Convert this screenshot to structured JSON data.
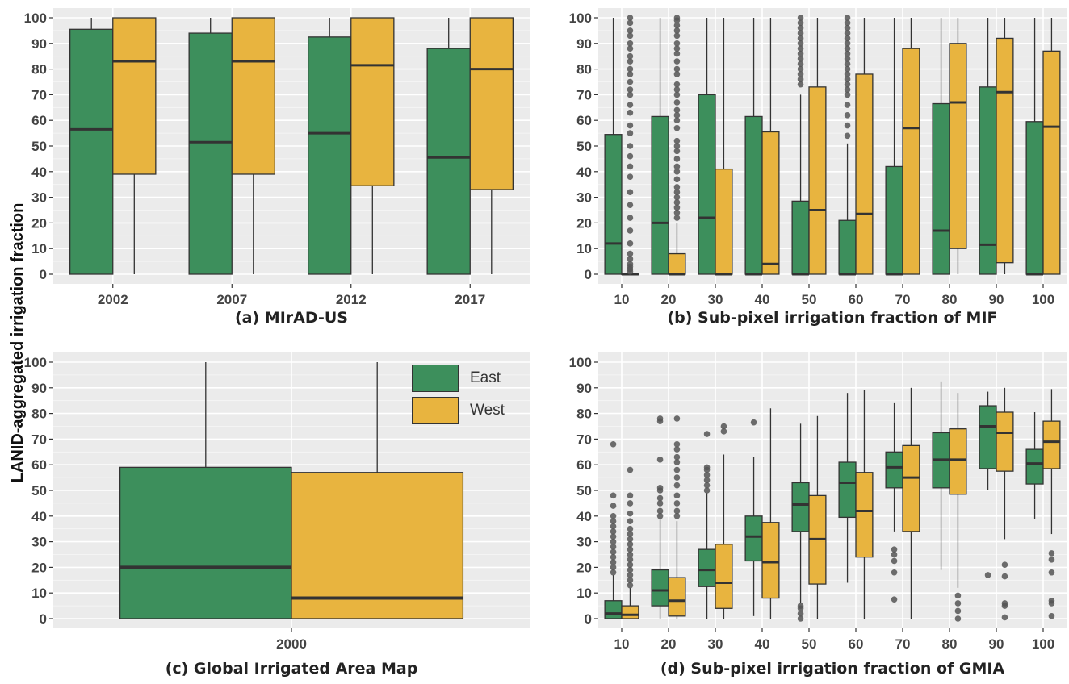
{
  "colors": {
    "east": "#3d8f5c",
    "west": "#e8b43f",
    "panel_bg": "#ebebeb",
    "grid": "#ffffff",
    "stroke": "#333333",
    "outlier": "#555555"
  },
  "figure": {
    "shared_ylabel": "LANID-aggregated irrigation fraction"
  },
  "legend": {
    "items": [
      {
        "label": "East",
        "color": "#3d8f5c"
      },
      {
        "label": "West",
        "color": "#e8b43f"
      }
    ]
  },
  "chart_data": [
    {
      "type": "boxplot",
      "caption": "(a) MIrAD-US",
      "categories": [
        "2002",
        "2007",
        "2012",
        "2017"
      ],
      "ylim": [
        0,
        100
      ],
      "yticks": [
        0,
        10,
        20,
        30,
        40,
        50,
        60,
        70,
        80,
        90,
        100
      ],
      "grid": true,
      "series": [
        {
          "name": "East",
          "boxes": [
            {
              "whisker_low": 0,
              "q1": 0,
              "median": 56.5,
              "q3": 95.5,
              "whisker_high": 100,
              "outliers": []
            },
            {
              "whisker_low": 0,
              "q1": 0,
              "median": 51.5,
              "q3": 94,
              "whisker_high": 100,
              "outliers": []
            },
            {
              "whisker_low": 0,
              "q1": 0,
              "median": 55,
              "q3": 92.5,
              "whisker_high": 100,
              "outliers": []
            },
            {
              "whisker_low": 0,
              "q1": 0,
              "median": 45.5,
              "q3": 88,
              "whisker_high": 100,
              "outliers": []
            }
          ]
        },
        {
          "name": "West",
          "boxes": [
            {
              "whisker_low": 0,
              "q1": 39,
              "median": 83,
              "q3": 100,
              "whisker_high": 100,
              "outliers": []
            },
            {
              "whisker_low": 0,
              "q1": 39,
              "median": 83,
              "q3": 100,
              "whisker_high": 100,
              "outliers": []
            },
            {
              "whisker_low": 0,
              "q1": 34.5,
              "median": 81.5,
              "q3": 100,
              "whisker_high": 100,
              "outliers": []
            },
            {
              "whisker_low": 0,
              "q1": 33,
              "median": 80,
              "q3": 100,
              "whisker_high": 100,
              "outliers": []
            }
          ]
        }
      ]
    },
    {
      "type": "boxplot",
      "caption": "(b) Sub-pixel irrigation fraction of MIF",
      "categories": [
        "10",
        "20",
        "30",
        "40",
        "50",
        "60",
        "70",
        "80",
        "90",
        "100"
      ],
      "ylim": [
        0,
        100
      ],
      "yticks": [
        0,
        10,
        20,
        30,
        40,
        50,
        60,
        70,
        80,
        90,
        100
      ],
      "grid": true,
      "series": [
        {
          "name": "East",
          "boxes": [
            {
              "whisker_low": 0,
              "q1": 0,
              "median": 12,
              "q3": 54.5,
              "whisker_high": 100,
              "outliers": []
            },
            {
              "whisker_low": 0,
              "q1": 0,
              "median": 20,
              "q3": 61.5,
              "whisker_high": 100,
              "outliers": []
            },
            {
              "whisker_low": 0,
              "q1": 0,
              "median": 22,
              "q3": 70,
              "whisker_high": 100,
              "outliers": []
            },
            {
              "whisker_low": 0,
              "q1": 0,
              "median": 0,
              "q3": 61.5,
              "whisker_high": 100,
              "outliers": []
            },
            {
              "whisker_low": 0,
              "q1": 0,
              "median": 0,
              "q3": 28.5,
              "whisker_high": 70,
              "outliers": [
                74,
                76,
                78,
                80,
                82,
                84,
                86,
                88,
                90,
                92,
                94,
                96,
                98,
                100
              ]
            },
            {
              "whisker_low": 0,
              "q1": 0,
              "median": 0,
              "q3": 21,
              "whisker_high": 51,
              "outliers": [
                54,
                58,
                62,
                66,
                70,
                72,
                74,
                76,
                78,
                80,
                82,
                84,
                86,
                88,
                90,
                92,
                94,
                96,
                98,
                100
              ]
            },
            {
              "whisker_low": 0,
              "q1": 0,
              "median": 0,
              "q3": 42,
              "whisker_high": 100,
              "outliers": []
            },
            {
              "whisker_low": 0,
              "q1": 0,
              "median": 17,
              "q3": 66.5,
              "whisker_high": 100,
              "outliers": []
            },
            {
              "whisker_low": 0,
              "q1": 0,
              "median": 11.5,
              "q3": 73,
              "whisker_high": 100,
              "outliers": []
            },
            {
              "whisker_low": 0,
              "q1": 0,
              "median": 0,
              "q3": 59.5,
              "whisker_high": 100,
              "outliers": []
            }
          ]
        },
        {
          "name": "West",
          "boxes": [
            {
              "whisker_low": 0,
              "q1": 0,
              "median": 0,
              "q3": 0,
              "whisker_high": 0,
              "outliers": [
                1,
                2,
                3,
                4,
                6,
                8,
                12,
                17,
                22,
                27,
                32,
                38,
                42,
                46,
                50,
                55,
                58,
                63,
                66,
                70,
                72,
                75,
                78,
                80,
                83,
                85,
                88,
                90,
                93,
                95,
                98,
                100
              ]
            },
            {
              "whisker_low": 0,
              "q1": 0,
              "median": 0,
              "q3": 8,
              "whisker_high": 20,
              "outliers": [
                22,
                24,
                26,
                28,
                30,
                32,
                34,
                37,
                40,
                42,
                45,
                48,
                50,
                52,
                57,
                60,
                62,
                64,
                67,
                70,
                72,
                74,
                78,
                80,
                83,
                86,
                88,
                90,
                93,
                95,
                97,
                99,
                100
              ]
            },
            {
              "whisker_low": 0,
              "q1": 0,
              "median": 0,
              "q3": 41,
              "whisker_high": 100,
              "outliers": []
            },
            {
              "whisker_low": 0,
              "q1": 0,
              "median": 4,
              "q3": 55.5,
              "whisker_high": 100,
              "outliers": []
            },
            {
              "whisker_low": 0,
              "q1": 0,
              "median": 25,
              "q3": 73,
              "whisker_high": 100,
              "outliers": []
            },
            {
              "whisker_low": 0,
              "q1": 0,
              "median": 23.5,
              "q3": 78,
              "whisker_high": 100,
              "outliers": []
            },
            {
              "whisker_low": 0,
              "q1": 0,
              "median": 57,
              "q3": 88,
              "whisker_high": 100,
              "outliers": []
            },
            {
              "whisker_low": 0,
              "q1": 10,
              "median": 67,
              "q3": 90,
              "whisker_high": 100,
              "outliers": []
            },
            {
              "whisker_low": 0,
              "q1": 4.5,
              "median": 71,
              "q3": 92,
              "whisker_high": 100,
              "outliers": []
            },
            {
              "whisker_low": 0,
              "q1": 0,
              "median": 57.5,
              "q3": 87,
              "whisker_high": 100,
              "outliers": []
            }
          ]
        }
      ]
    },
    {
      "type": "boxplot",
      "caption": "(c) Global Irrigated Area Map",
      "categories": [
        "2000"
      ],
      "ylim": [
        0,
        100
      ],
      "yticks": [
        0,
        10,
        20,
        30,
        40,
        50,
        60,
        70,
        80,
        90,
        100
      ],
      "grid": true,
      "legend_position": "top-right",
      "series": [
        {
          "name": "East",
          "boxes": [
            {
              "whisker_low": 0,
              "q1": 0,
              "median": 20,
              "q3": 59,
              "whisker_high": 100,
              "outliers": []
            }
          ]
        },
        {
          "name": "West",
          "boxes": [
            {
              "whisker_low": 0,
              "q1": 0,
              "median": 8,
              "q3": 57,
              "whisker_high": 100,
              "outliers": []
            }
          ]
        }
      ]
    },
    {
      "type": "boxplot",
      "caption": "(d) Sub-pixel irrigation fraction of GMIA",
      "categories": [
        "10",
        "20",
        "30",
        "40",
        "50",
        "60",
        "70",
        "80",
        "90",
        "100"
      ],
      "ylim": [
        0,
        100
      ],
      "yticks": [
        0,
        10,
        20,
        30,
        40,
        50,
        60,
        70,
        80,
        90,
        100
      ],
      "grid": true,
      "series": [
        {
          "name": "East",
          "boxes": [
            {
              "whisker_low": 0,
              "q1": 0,
              "median": 2,
              "q3": 7,
              "whisker_high": 17,
              "outliers": [
                18,
                20,
                22,
                24,
                26,
                28,
                30,
                32,
                34,
                36,
                38,
                40,
                44,
                48,
                68
              ]
            },
            {
              "whisker_low": 0,
              "q1": 5,
              "median": 11,
              "q3": 19,
              "whisker_high": 39,
              "outliers": [
                40,
                42,
                45,
                47,
                50,
                51,
                62,
                77,
                78
              ]
            },
            {
              "whisker_low": 0,
              "q1": 12.5,
              "median": 19,
              "q3": 27,
              "whisker_high": 49,
              "outliers": [
                50,
                52,
                54,
                56,
                58,
                59,
                72
              ]
            },
            {
              "whisker_low": 1,
              "q1": 22.5,
              "median": 32,
              "q3": 40,
              "whisker_high": 63,
              "outliers": [
                76.5
              ]
            },
            {
              "whisker_low": 6,
              "q1": 34,
              "median": 44.5,
              "q3": 53,
              "whisker_high": 76,
              "outliers": [
                0,
                2,
                4,
                5
              ]
            },
            {
              "whisker_low": 14,
              "q1": 39.5,
              "median": 53,
              "q3": 61,
              "whisker_high": 88,
              "outliers": []
            },
            {
              "whisker_low": 34,
              "q1": 51,
              "median": 59,
              "q3": 65,
              "whisker_high": 84,
              "outliers": [
                7.5,
                18,
                22.5,
                25,
                27
              ]
            },
            {
              "whisker_low": 19,
              "q1": 51,
              "median": 62,
              "q3": 72.5,
              "whisker_high": 92.5,
              "outliers": []
            },
            {
              "whisker_low": 50,
              "q1": 58.5,
              "median": 75,
              "q3": 83,
              "whisker_high": 88.5,
              "outliers": [
                17
              ]
            },
            {
              "whisker_low": 39,
              "q1": 52.5,
              "median": 60.5,
              "q3": 66,
              "whisker_high": 80.5,
              "outliers": []
            }
          ]
        },
        {
          "name": "West",
          "boxes": [
            {
              "whisker_low": 0,
              "q1": 0,
              "median": 1.5,
              "q3": 5,
              "whisker_high": 12,
              "outliers": [
                13,
                15,
                17,
                19,
                21,
                23,
                25,
                27,
                29,
                31,
                33,
                35,
                38,
                41,
                45,
                48,
                58
              ]
            },
            {
              "whisker_low": 0,
              "q1": 1,
              "median": 7,
              "q3": 16,
              "whisker_high": 38,
              "outliers": [
                40,
                42,
                45,
                48,
                52,
                55,
                58,
                61,
                63,
                66,
                68,
                78
              ]
            },
            {
              "whisker_low": 0,
              "q1": 4,
              "median": 14,
              "q3": 29,
              "whisker_high": 64,
              "outliers": [
                73,
                75
              ]
            },
            {
              "whisker_low": 0,
              "q1": 8,
              "median": 22,
              "q3": 37.5,
              "whisker_high": 82,
              "outliers": []
            },
            {
              "whisker_low": 0,
              "q1": 13.5,
              "median": 31,
              "q3": 48,
              "whisker_high": 79,
              "outliers": []
            },
            {
              "whisker_low": 0,
              "q1": 24,
              "median": 42,
              "q3": 57,
              "whisker_high": 89,
              "outliers": []
            },
            {
              "whisker_low": 0,
              "q1": 34,
              "median": 55,
              "q3": 67.5,
              "whisker_high": 90,
              "outliers": []
            },
            {
              "whisker_low": 12,
              "q1": 48.5,
              "median": 62,
              "q3": 74,
              "whisker_high": 88,
              "outliers": [
                0,
                3,
                6,
                9
              ]
            },
            {
              "whisker_low": 31,
              "q1": 57.5,
              "median": 72.5,
              "q3": 80.5,
              "whisker_high": 90,
              "outliers": [
                0.5,
                5,
                6,
                16.5,
                21
              ]
            },
            {
              "whisker_low": 33,
              "q1": 58.5,
              "median": 69,
              "q3": 77,
              "whisker_high": 89.5,
              "outliers": [
                1,
                6,
                7,
                18,
                23,
                25.5
              ]
            }
          ]
        }
      ]
    }
  ]
}
